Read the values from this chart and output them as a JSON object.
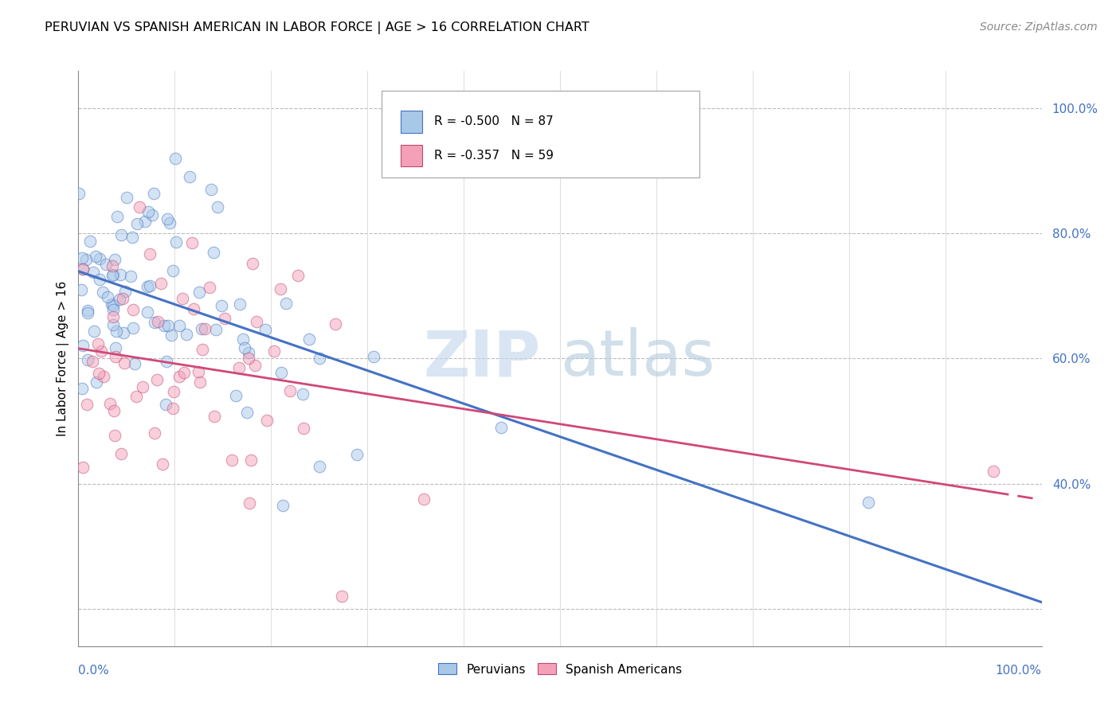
{
  "title": "PERUVIAN VS SPANISH AMERICAN IN LABOR FORCE | AGE > 16 CORRELATION CHART",
  "source": "Source: ZipAtlas.com",
  "ylabel": "In Labor Force | Age > 16",
  "legend_blue_R": "R = -0.500",
  "legend_blue_N": "N = 87",
  "legend_pink_R": "R = -0.357",
  "legend_pink_N": "N = 59",
  "legend_blue_series": "Peruvians",
  "legend_pink_series": "Spanish Americans",
  "blue_face_color": "#a8c8e8",
  "blue_edge_color": "#4472c4",
  "blue_line_color": "#4472c4",
  "pink_face_color": "#f4a0b8",
  "pink_edge_color": "#c04870",
  "pink_line_color": "#d04878",
  "axis_label_color": "#4472c4",
  "title_fontsize": 11.5,
  "source_fontsize": 10,
  "tick_label_fontsize": 11,
  "legend_fontsize": 11,
  "marker_size": 110,
  "marker_alpha": 0.5,
  "xlim": [
    0.0,
    1.0
  ],
  "ylim": [
    0.14,
    1.06
  ],
  "right_y_ticks": [
    1.0,
    0.8,
    0.6,
    0.4
  ],
  "right_y_labels": [
    "100.0%",
    "80.0%",
    "60.0%",
    "40.0%"
  ],
  "x_left_label": "0.0%",
  "x_right_label": "100.0%",
  "watermark_zip": "ZIP",
  "watermark_atlas": "atlas",
  "blue_seed": 10,
  "pink_seed": 20
}
